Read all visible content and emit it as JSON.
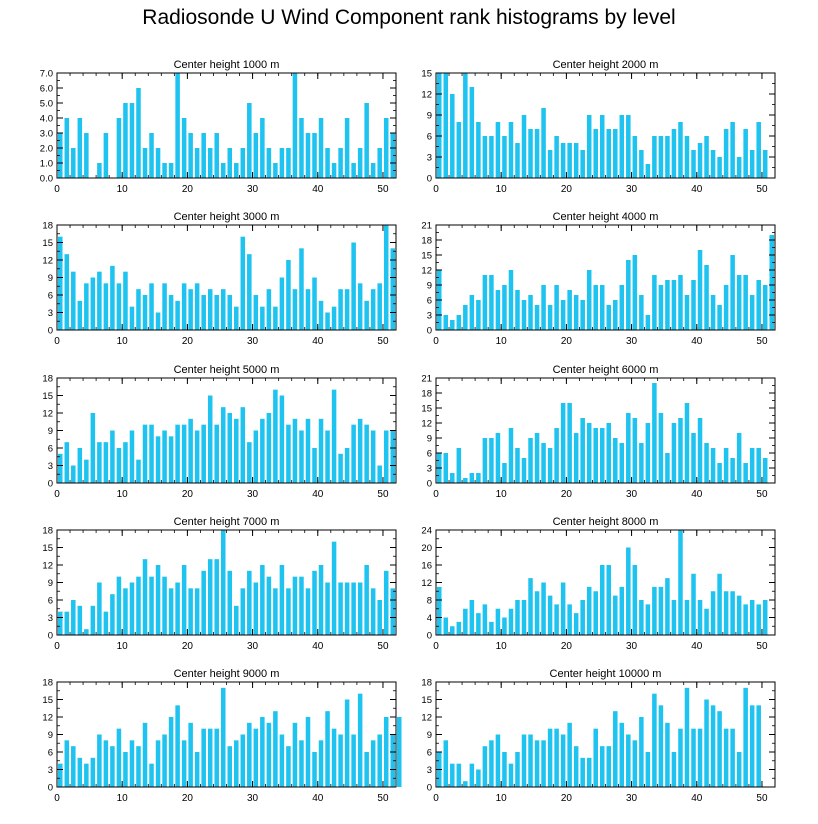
{
  "title": "Radiosonde U Wind Component rank histograms by level",
  "colors": {
    "bar": "#1ec3f0",
    "bar_edge": "#ffffff",
    "axis": "#000000"
  },
  "chart_data": [
    {
      "type": "bar",
      "title": "Center height 1000 m",
      "xlim": [
        0,
        52
      ],
      "ylim": [
        0,
        7
      ],
      "xticks": [
        0,
        10,
        20,
        30,
        40,
        50
      ],
      "yticks": [
        0,
        1,
        2,
        3,
        4,
        5,
        6,
        7
      ],
      "ytick_labels": [
        "0.0",
        "1.0",
        "2.0",
        "3.0",
        "4.0",
        "5.0",
        "6.0",
        "7.0"
      ],
      "values": [
        3,
        4,
        2,
        4,
        3,
        0,
        1,
        3,
        0,
        4,
        5,
        5,
        6,
        2,
        3,
        2,
        1,
        1,
        7,
        4,
        3,
        2,
        3,
        2,
        3,
        1,
        2,
        1,
        2,
        5,
        3,
        4,
        2,
        1,
        2,
        2,
        7,
        4,
        3,
        3,
        4,
        2,
        1,
        2,
        4,
        1,
        2,
        5,
        1,
        2,
        4,
        3
      ]
    },
    {
      "type": "bar",
      "title": "Center height 2000 m",
      "xlim": [
        0,
        52
      ],
      "ylim": [
        0,
        15
      ],
      "xticks": [
        0,
        10,
        20,
        30,
        40,
        50
      ],
      "yticks": [
        0,
        3,
        6,
        9,
        12,
        15
      ],
      "ytick_labels": [
        "0",
        "3",
        "6",
        "9",
        "12",
        "15"
      ],
      "values": [
        15,
        15,
        12,
        8,
        15,
        13,
        8,
        6,
        6,
        8,
        6,
        8,
        5,
        9,
        7,
        7,
        10,
        4,
        6,
        5,
        5,
        5,
        4,
        9,
        7,
        9,
        7,
        7,
        9,
        9,
        6,
        4,
        2,
        6,
        6,
        6,
        7,
        8,
        6,
        4,
        5,
        6,
        4,
        3,
        7,
        8,
        3,
        7,
        4,
        8,
        4
      ]
    },
    {
      "type": "bar",
      "title": "Center height 3000 m",
      "xlim": [
        0,
        52
      ],
      "ylim": [
        0,
        18
      ],
      "xticks": [
        0,
        10,
        20,
        30,
        40,
        50
      ],
      "yticks": [
        0,
        3,
        6,
        9,
        12,
        15,
        18
      ],
      "ytick_labels": [
        "0",
        "3",
        "6",
        "9",
        "12",
        "15",
        "18"
      ],
      "values": [
        16,
        13,
        10,
        5,
        8,
        9,
        10,
        8,
        11,
        8,
        10,
        4,
        7,
        6,
        8,
        3,
        8,
        6,
        5,
        8,
        7,
        8,
        6,
        7,
        6,
        7,
        6,
        4,
        16,
        13,
        6,
        4,
        7,
        4,
        9,
        12,
        7,
        14,
        7,
        9,
        5,
        3,
        4,
        7,
        7,
        15,
        8,
        5,
        7,
        8,
        18,
        14
      ]
    },
    {
      "type": "bar",
      "title": "Center height 4000 m",
      "xlim": [
        0,
        52
      ],
      "ylim": [
        0,
        21
      ],
      "xticks": [
        0,
        10,
        20,
        30,
        40,
        50
      ],
      "yticks": [
        0,
        3,
        6,
        9,
        12,
        15,
        18,
        21
      ],
      "ytick_labels": [
        "0",
        "3",
        "6",
        "9",
        "12",
        "15",
        "18",
        "21"
      ],
      "values": [
        12,
        3,
        2,
        3,
        5,
        7,
        6,
        11,
        11,
        8,
        9,
        12,
        8,
        6,
        7,
        5,
        9,
        5,
        9,
        6,
        8,
        7,
        6,
        12,
        9,
        9,
        5,
        6,
        9,
        14,
        15,
        7,
        3,
        11,
        9,
        10,
        10,
        11,
        7,
        10,
        16,
        13,
        7,
        5,
        9,
        15,
        11,
        11,
        7,
        10,
        9,
        19
      ]
    },
    {
      "type": "bar",
      "title": "Center height 5000 m",
      "xlim": [
        0,
        52
      ],
      "ylim": [
        0,
        18
      ],
      "xticks": [
        0,
        10,
        20,
        30,
        40,
        50
      ],
      "yticks": [
        0,
        3,
        6,
        9,
        12,
        15,
        18
      ],
      "ytick_labels": [
        "0",
        "3",
        "6",
        "9",
        "12",
        "15",
        "18"
      ],
      "values": [
        5,
        7,
        3,
        6,
        4,
        12,
        7,
        7,
        9,
        6,
        7,
        9,
        4,
        10,
        10,
        8,
        9,
        8,
        10,
        10,
        11,
        9,
        10,
        15,
        10,
        13,
        12,
        11,
        13,
        7,
        9,
        11,
        12,
        16,
        15,
        10,
        11,
        9,
        11,
        6,
        11,
        9,
        16,
        5,
        6,
        10,
        11,
        10,
        9,
        3,
        9,
        9
      ]
    },
    {
      "type": "bar",
      "title": "Center height 6000 m",
      "xlim": [
        0,
        52
      ],
      "ylim": [
        0,
        21
      ],
      "xticks": [
        0,
        10,
        20,
        30,
        40,
        50
      ],
      "yticks": [
        0,
        3,
        6,
        9,
        12,
        15,
        18,
        21
      ],
      "ytick_labels": [
        "0",
        "3",
        "6",
        "9",
        "12",
        "15",
        "18",
        "21"
      ],
      "values": [
        6,
        6,
        2,
        7,
        1,
        2,
        2,
        9,
        9,
        10,
        4,
        11,
        7,
        5,
        9,
        10,
        8,
        7,
        11,
        16,
        16,
        10,
        13,
        12,
        11,
        11,
        12,
        9,
        8,
        14,
        13,
        8,
        12,
        20,
        14,
        6,
        12,
        13,
        16,
        10,
        13,
        8,
        7,
        4,
        7,
        5,
        10,
        4,
        7,
        7,
        5
      ]
    },
    {
      "type": "bar",
      "title": "Center height 7000 m",
      "xlim": [
        0,
        52
      ],
      "ylim": [
        0,
        18
      ],
      "xticks": [
        0,
        10,
        20,
        30,
        40,
        50
      ],
      "yticks": [
        0,
        3,
        6,
        9,
        12,
        15,
        18
      ],
      "ytick_labels": [
        "0",
        "3",
        "6",
        "9",
        "12",
        "15",
        "18"
      ],
      "values": [
        4,
        4,
        6,
        5,
        1,
        5,
        9,
        4,
        7,
        10,
        8,
        9,
        10,
        13,
        10,
        12,
        10,
        8,
        9,
        12,
        8,
        8,
        11,
        13,
        13,
        18,
        11,
        5,
        8,
        11,
        9,
        12,
        10,
        8,
        12,
        8,
        10,
        10,
        8,
        11,
        12,
        9,
        16,
        9,
        9,
        9,
        9,
        12,
        8,
        6,
        11,
        8
      ]
    },
    {
      "type": "bar",
      "title": "Center height 8000 m",
      "xlim": [
        0,
        52
      ],
      "ylim": [
        0,
        24
      ],
      "xticks": [
        0,
        10,
        20,
        30,
        40,
        50
      ],
      "yticks": [
        0,
        4,
        8,
        12,
        16,
        20,
        24
      ],
      "ytick_labels": [
        "0",
        "4",
        "8",
        "12",
        "16",
        "20",
        "24"
      ],
      "values": [
        11,
        4,
        2,
        3,
        6,
        8,
        5,
        7,
        3,
        6,
        4,
        6,
        8,
        8,
        13,
        10,
        12,
        9,
        7,
        12,
        7,
        5,
        8,
        11,
        10,
        16,
        16,
        9,
        11,
        20,
        16,
        8,
        7,
        11,
        11,
        13,
        8,
        24,
        8,
        14,
        8,
        6,
        10,
        14,
        10,
        10,
        9,
        7,
        8,
        7,
        8
      ]
    },
    {
      "type": "bar",
      "title": "Center height 9000 m",
      "xlim": [
        0,
        52
      ],
      "ylim": [
        0,
        18
      ],
      "xticks": [
        0,
        10,
        20,
        30,
        40,
        50
      ],
      "yticks": [
        0,
        3,
        6,
        9,
        12,
        15,
        18
      ],
      "ytick_labels": [
        "0",
        "3",
        "6",
        "9",
        "12",
        "15",
        "18"
      ],
      "values": [
        4,
        8,
        7,
        5,
        4,
        5,
        9,
        8,
        7,
        10,
        6,
        8,
        7,
        11,
        4,
        8,
        9,
        12,
        14,
        8,
        11,
        6,
        10,
        10,
        10,
        17,
        7,
        8,
        9,
        11,
        10,
        12,
        11,
        13,
        9,
        7,
        11,
        8,
        12,
        6,
        8,
        13,
        10,
        9,
        15,
        9,
        16,
        6,
        8,
        9,
        12,
        9,
        12
      ]
    },
    {
      "type": "bar",
      "title": "Center height 10000 m",
      "xlim": [
        0,
        52
      ],
      "ylim": [
        0,
        18
      ],
      "xticks": [
        0,
        10,
        20,
        30,
        40,
        50
      ],
      "yticks": [
        0,
        3,
        6,
        9,
        12,
        15,
        18
      ],
      "ytick_labels": [
        "0",
        "3",
        "6",
        "9",
        "12",
        "15",
        "18"
      ],
      "values": [
        6,
        8,
        4,
        4,
        1,
        4,
        3,
        7,
        8,
        9,
        6,
        4,
        6,
        9,
        9,
        8,
        8,
        10,
        10,
        9,
        11,
        7,
        5,
        5,
        10,
        7,
        7,
        13,
        11,
        9,
        8,
        12,
        6,
        16,
        14,
        11,
        6,
        10,
        17,
        10,
        10,
        15,
        14,
        13,
        10,
        10,
        6,
        17,
        14,
        14
      ]
    }
  ]
}
